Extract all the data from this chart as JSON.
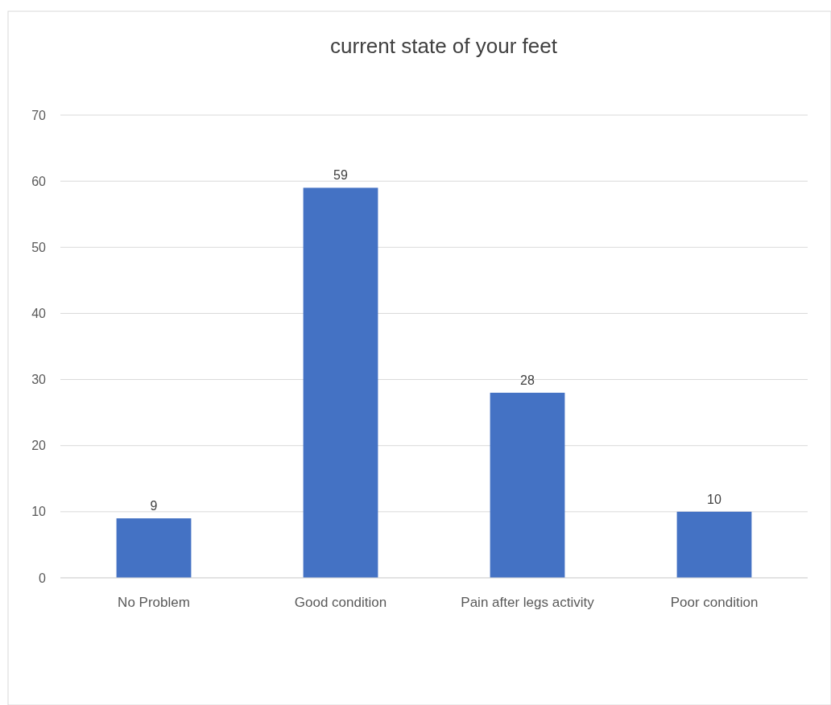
{
  "chart_data": {
    "type": "bar",
    "title": "current state of your feet",
    "categories": [
      "No Problem",
      "Good condition",
      "Pain after legs activity",
      "Poor condition"
    ],
    "values": [
      9,
      59,
      28,
      10
    ],
    "color": "#4472c4",
    "ylim": [
      0,
      70
    ],
    "yticks": [
      0,
      10,
      20,
      30,
      40,
      50,
      60,
      70
    ],
    "grid": "y",
    "data_labels": true
  }
}
